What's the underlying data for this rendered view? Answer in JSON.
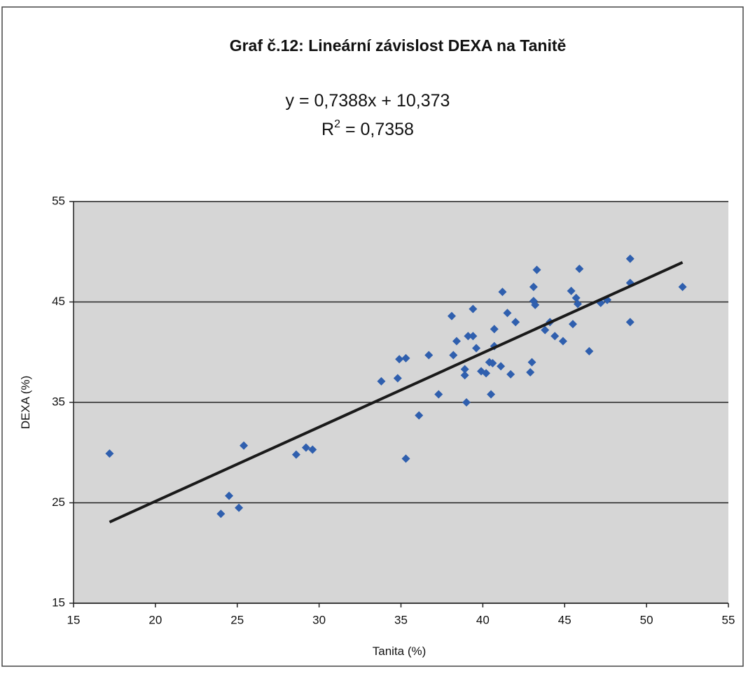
{
  "chart_data": {
    "type": "scatter",
    "title": "Graf č.12: Lineární závislost DEXA na Tanitě",
    "equation": "y = 0,7388x + 10,373",
    "r_squared": [
      "R",
      "2",
      " = 0,7358"
    ],
    "x_label": "Tanita (%)",
    "y_label": "DEXA (%)",
    "color": "#2f5fae",
    "x": [
      17.2,
      24.0,
      24.5,
      25.1,
      25.4,
      28.6,
      29.2,
      29.6,
      33.8,
      34.8,
      34.9,
      35.3,
      35.3,
      36.1,
      36.7,
      37.3,
      38.1,
      38.2,
      38.4,
      38.9,
      38.9,
      39.0,
      39.1,
      39.4,
      39.4,
      39.6,
      39.9,
      40.2,
      40.4,
      40.5,
      40.6,
      40.7,
      40.7,
      41.1,
      41.2,
      41.5,
      41.7,
      42.0,
      42.9,
      43.0,
      43.1,
      43.1,
      43.2,
      43.3,
      43.8,
      44.1,
      44.4,
      44.9,
      45.4,
      45.5,
      45.7,
      45.8,
      45.9,
      46.5,
      47.2,
      47.6,
      49.0,
      49.0,
      49.0,
      52.2
    ],
    "values": [
      29.9,
      23.9,
      25.7,
      24.5,
      30.7,
      29.8,
      30.5,
      30.3,
      37.1,
      37.4,
      39.3,
      39.4,
      29.4,
      33.7,
      39.7,
      35.8,
      43.6,
      39.7,
      41.1,
      38.3,
      37.7,
      35.0,
      41.6,
      41.6,
      44.3,
      40.4,
      38.1,
      37.9,
      39.0,
      35.8,
      38.9,
      40.6,
      42.3,
      38.6,
      46.0,
      43.9,
      37.8,
      43.0,
      38.0,
      39.0,
      46.5,
      45.1,
      44.7,
      48.2,
      42.2,
      43.0,
      41.6,
      41.1,
      46.1,
      42.8,
      45.4,
      44.8,
      48.3,
      40.1,
      44.9,
      45.2,
      49.3,
      46.9,
      43.0,
      46.5
    ],
    "trendline": {
      "x": [
        17.2,
        52.2
      ],
      "y": [
        23.08,
        48.94
      ],
      "color": "#1a1a1a"
    },
    "xlim": [
      15,
      55
    ],
    "ylim": [
      15,
      55
    ],
    "xticks": [
      15,
      20,
      25,
      30,
      35,
      40,
      45,
      50,
      55
    ],
    "yticks": [
      15,
      25,
      35,
      45,
      55
    ],
    "grid": true
  }
}
